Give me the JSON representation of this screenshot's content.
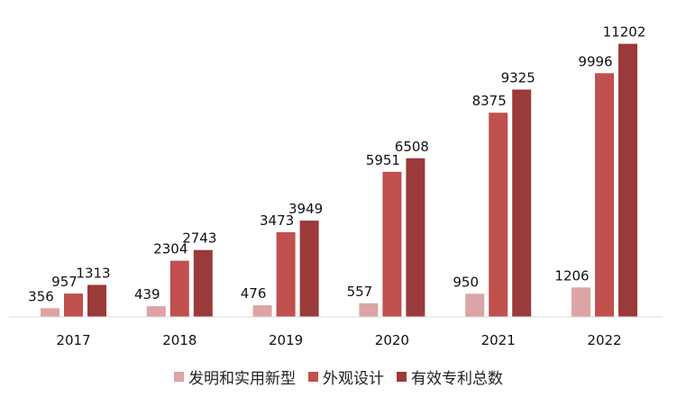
{
  "chart_data": {
    "type": "bar",
    "title": "",
    "xlabel": "",
    "ylabel": "",
    "ylim": [
      0,
      11300
    ],
    "categories": [
      "2017",
      "2018",
      "2019",
      "2020",
      "2021",
      "2022"
    ],
    "series": [
      {
        "name": "发明和实用新型",
        "color": "#dca4a4",
        "values": [
          356,
          439,
          476,
          557,
          950,
          1206
        ]
      },
      {
        "name": "外观设计",
        "color": "#c0504d",
        "values": [
          957,
          2304,
          3473,
          5951,
          8375,
          9996
        ]
      },
      {
        "name": "有效专利总数",
        "color": "#9b3a3a",
        "values": [
          1313,
          2743,
          3949,
          6508,
          9325,
          11202
        ]
      }
    ],
    "legend_position": "bottom",
    "grid": false
  }
}
